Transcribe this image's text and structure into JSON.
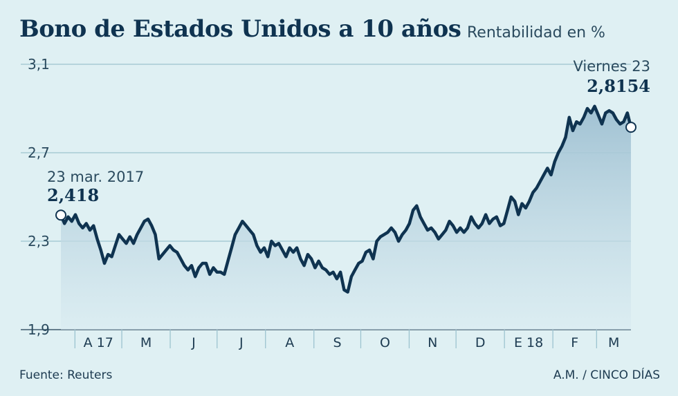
{
  "chart_data": {
    "type": "area",
    "title": "Bono de Estados Unidos a 10 años",
    "subtitle": "Rentabilidad en %",
    "ylim": [
      1.9,
      3.1
    ],
    "yticks": [
      {
        "value": 1.9,
        "label": "1,9"
      },
      {
        "value": 2.3,
        "label": "2,3"
      },
      {
        "value": 2.7,
        "label": "2,7"
      },
      {
        "value": 3.1,
        "label": "3,1"
      }
    ],
    "month_labels": [
      "A 17",
      "M",
      "J",
      "J",
      "A",
      "S",
      "O",
      "N",
      "D",
      "E 18",
      "F",
      "M"
    ],
    "x_start": "2017-03-23",
    "x_end": "2018-03-23",
    "values": [
      2.418,
      2.38,
      2.41,
      2.39,
      2.42,
      2.38,
      2.36,
      2.38,
      2.35,
      2.37,
      2.31,
      2.26,
      2.2,
      2.24,
      2.23,
      2.28,
      2.33,
      2.31,
      2.29,
      2.32,
      2.29,
      2.33,
      2.36,
      2.39,
      2.4,
      2.37,
      2.33,
      2.22,
      2.24,
      2.26,
      2.28,
      2.26,
      2.25,
      2.22,
      2.19,
      2.17,
      2.19,
      2.14,
      2.18,
      2.2,
      2.2,
      2.15,
      2.18,
      2.16,
      2.16,
      2.15,
      2.21,
      2.27,
      2.33,
      2.36,
      2.39,
      2.37,
      2.35,
      2.33,
      2.28,
      2.25,
      2.27,
      2.23,
      2.3,
      2.28,
      2.29,
      2.26,
      2.23,
      2.27,
      2.25,
      2.27,
      2.22,
      2.19,
      2.24,
      2.22,
      2.18,
      2.21,
      2.18,
      2.17,
      2.15,
      2.16,
      2.13,
      2.16,
      2.08,
      2.07,
      2.14,
      2.17,
      2.2,
      2.21,
      2.25,
      2.26,
      2.22,
      2.3,
      2.32,
      2.33,
      2.34,
      2.36,
      2.34,
      2.3,
      2.33,
      2.35,
      2.38,
      2.44,
      2.46,
      2.41,
      2.38,
      2.35,
      2.36,
      2.34,
      2.31,
      2.33,
      2.35,
      2.39,
      2.37,
      2.34,
      2.36,
      2.34,
      2.36,
      2.41,
      2.38,
      2.36,
      2.38,
      2.42,
      2.38,
      2.4,
      2.41,
      2.37,
      2.38,
      2.44,
      2.5,
      2.48,
      2.42,
      2.47,
      2.45,
      2.48,
      2.52,
      2.54,
      2.57,
      2.6,
      2.63,
      2.6,
      2.66,
      2.7,
      2.73,
      2.77,
      2.86,
      2.8,
      2.84,
      2.83,
      2.86,
      2.9,
      2.88,
      2.91,
      2.87,
      2.83,
      2.88,
      2.89,
      2.88,
      2.85,
      2.83,
      2.84,
      2.88,
      2.8154
    ],
    "start_annotation": {
      "date": "23 mar. 2017",
      "value": "2,418"
    },
    "end_annotation": {
      "date": "Viernes 23",
      "value": "2,8154"
    },
    "series_color": "#0f3350",
    "fill_color": "#a9c8d8"
  },
  "footer": {
    "source": "Fuente: Reuters",
    "credit": "A.M. / CINCO DÍAS"
  }
}
